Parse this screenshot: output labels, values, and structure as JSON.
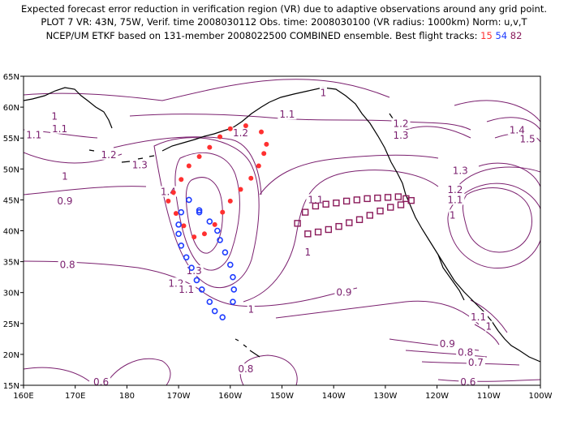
{
  "header": {
    "line1": "Expected forecast error reduction in verification region (VR) due to adaptive observations around any grid point.",
    "line2": "PLOT 7 VR: 43N, 75W, Verif. time 2008030112 Obs. time: 2008030100 (VR radius: 1000km) Norm: u,v,T",
    "line3_prefix": "NCEP/UM ETKF based on 131-member 2008022500 COMBINED ensemble.  Best flight tracks: ",
    "track_ids": [
      "15",
      "54",
      "82"
    ]
  },
  "colors": {
    "contour": "#7a1f6e",
    "coast": "#000000",
    "track_15": "#ff3030",
    "track_54": "#1e3cff",
    "track_82": "#8a1a5a"
  },
  "axes": {
    "lon_ticks": [
      "160E",
      "170E",
      "180",
      "170W",
      "160W",
      "150W",
      "140W",
      "130W",
      "120W",
      "110W",
      "100W"
    ],
    "lat_ticks": [
      "15N",
      "20N",
      "25N",
      "30N",
      "35N",
      "40N",
      "45N",
      "50N",
      "55N",
      "60N",
      "65N"
    ],
    "lon_range": [
      160,
      260
    ],
    "lat_range": [
      15,
      65
    ]
  },
  "contour_labels": [
    {
      "text": "1",
      "lon": 218,
      "lat": 62.3
    },
    {
      "text": "1.1",
      "lon": 211,
      "lat": 58.8
    },
    {
      "text": "1",
      "lon": 166,
      "lat": 58.5
    },
    {
      "text": "1.1",
      "lon": 167,
      "lat": 56.5
    },
    {
      "text": "1.2",
      "lon": 202,
      "lat": 55.8
    },
    {
      "text": "1.1",
      "lon": 162,
      "lat": 55.5
    },
    {
      "text": "1.2",
      "lon": 233,
      "lat": 57.3
    },
    {
      "text": "1.3",
      "lon": 233,
      "lat": 55.4
    },
    {
      "text": "1.4",
      "lon": 255.5,
      "lat": 56.3
    },
    {
      "text": "1.5",
      "lon": 257.5,
      "lat": 54.8
    },
    {
      "text": "1.2",
      "lon": 176.5,
      "lat": 52.3
    },
    {
      "text": "1.3",
      "lon": 182.5,
      "lat": 50.6
    },
    {
      "text": "1",
      "lon": 168,
      "lat": 48.8
    },
    {
      "text": "1.3",
      "lon": 244.5,
      "lat": 49.7
    },
    {
      "text": "1.4",
      "lon": 188,
      "lat": 46.3
    },
    {
      "text": "1.2",
      "lon": 243.5,
      "lat": 46.6
    },
    {
      "text": "0.9",
      "lon": 168,
      "lat": 44.8
    },
    {
      "text": "1.1",
      "lon": 216.5,
      "lat": 45
    },
    {
      "text": "1.1",
      "lon": 243.5,
      "lat": 45
    },
    {
      "text": "1",
      "lon": 243,
      "lat": 42.5
    },
    {
      "text": "1",
      "lon": 215,
      "lat": 36.5
    },
    {
      "text": "0.8",
      "lon": 168.5,
      "lat": 34.5
    },
    {
      "text": "1.3",
      "lon": 193,
      "lat": 33.5
    },
    {
      "text": "1.2",
      "lon": 189.5,
      "lat": 31.5
    },
    {
      "text": "1.1",
      "lon": 191.5,
      "lat": 30.5
    },
    {
      "text": "0.9",
      "lon": 222,
      "lat": 30
    },
    {
      "text": "1",
      "lon": 204,
      "lat": 27.3
    },
    {
      "text": "1.1",
      "lon": 248,
      "lat": 26
    },
    {
      "text": "1",
      "lon": 250,
      "lat": 24.5
    },
    {
      "text": "0.9",
      "lon": 242,
      "lat": 21.7
    },
    {
      "text": "0.8",
      "lon": 245.5,
      "lat": 20.3
    },
    {
      "text": "0.7",
      "lon": 247.5,
      "lat": 18.7
    },
    {
      "text": "0.8",
      "lon": 203,
      "lat": 17.6
    },
    {
      "text": "0.6",
      "lon": 175,
      "lat": 15.5
    },
    {
      "text": "0.6",
      "lon": 246,
      "lat": 15.5
    }
  ],
  "tracks": [
    {
      "id": "15",
      "marker": "dot",
      "points": [
        [
          189,
          46.2
        ],
        [
          190.5,
          48.3
        ],
        [
          192,
          50.5
        ],
        [
          194,
          52
        ],
        [
          196,
          53.5
        ],
        [
          198,
          55.2
        ],
        [
          200,
          56.5
        ],
        [
          203,
          57
        ],
        [
          206,
          56
        ],
        [
          207,
          54
        ],
        [
          206.5,
          52.5
        ],
        [
          205.5,
          50.5
        ],
        [
          204,
          48.5
        ],
        [
          202,
          46.7
        ],
        [
          200,
          44.8
        ],
        [
          198.5,
          43
        ],
        [
          197,
          41
        ],
        [
          195,
          39.5
        ],
        [
          193,
          39
        ],
        [
          191,
          40.8
        ],
        [
          189.5,
          42.8
        ],
        [
          188,
          44.8
        ]
      ]
    },
    {
      "id": "54",
      "marker": "circle",
      "points": [
        [
          192,
          45
        ],
        [
          194,
          43
        ],
        [
          196,
          41.5
        ],
        [
          197.5,
          40
        ],
        [
          198,
          38.5
        ],
        [
          199,
          36.5
        ],
        [
          200,
          34.5
        ],
        [
          200.5,
          32.5
        ],
        [
          200.7,
          30.5
        ],
        [
          200.5,
          28.5
        ],
        [
          198.5,
          26
        ],
        [
          197,
          27
        ],
        [
          196,
          28.5
        ],
        [
          194.5,
          30.5
        ],
        [
          193.5,
          32
        ],
        [
          192.5,
          34
        ],
        [
          191.5,
          35.7
        ],
        [
          190.5,
          37.6
        ],
        [
          190,
          39.5
        ],
        [
          190,
          41
        ],
        [
          190.5,
          43
        ],
        [
          194,
          43.3
        ]
      ]
    },
    {
      "id": "82",
      "marker": "square",
      "points": [
        [
          213,
          41.2
        ],
        [
          214.5,
          43
        ],
        [
          216.5,
          44
        ],
        [
          218.5,
          44.3
        ],
        [
          220.5,
          44.5
        ],
        [
          222.5,
          44.8
        ],
        [
          224.5,
          45
        ],
        [
          226.5,
          45.2
        ],
        [
          228.5,
          45.3
        ],
        [
          230.5,
          45.4
        ],
        [
          232.5,
          45.5
        ],
        [
          234,
          45.2
        ],
        [
          235,
          44.9
        ],
        [
          233,
          44.2
        ],
        [
          231,
          43.8
        ],
        [
          229,
          43.2
        ],
        [
          227,
          42.5
        ],
        [
          225,
          41.8
        ],
        [
          223,
          41.3
        ],
        [
          221,
          40.7
        ],
        [
          219,
          40.2
        ],
        [
          217,
          39.8
        ],
        [
          215,
          39.5
        ]
      ]
    }
  ]
}
